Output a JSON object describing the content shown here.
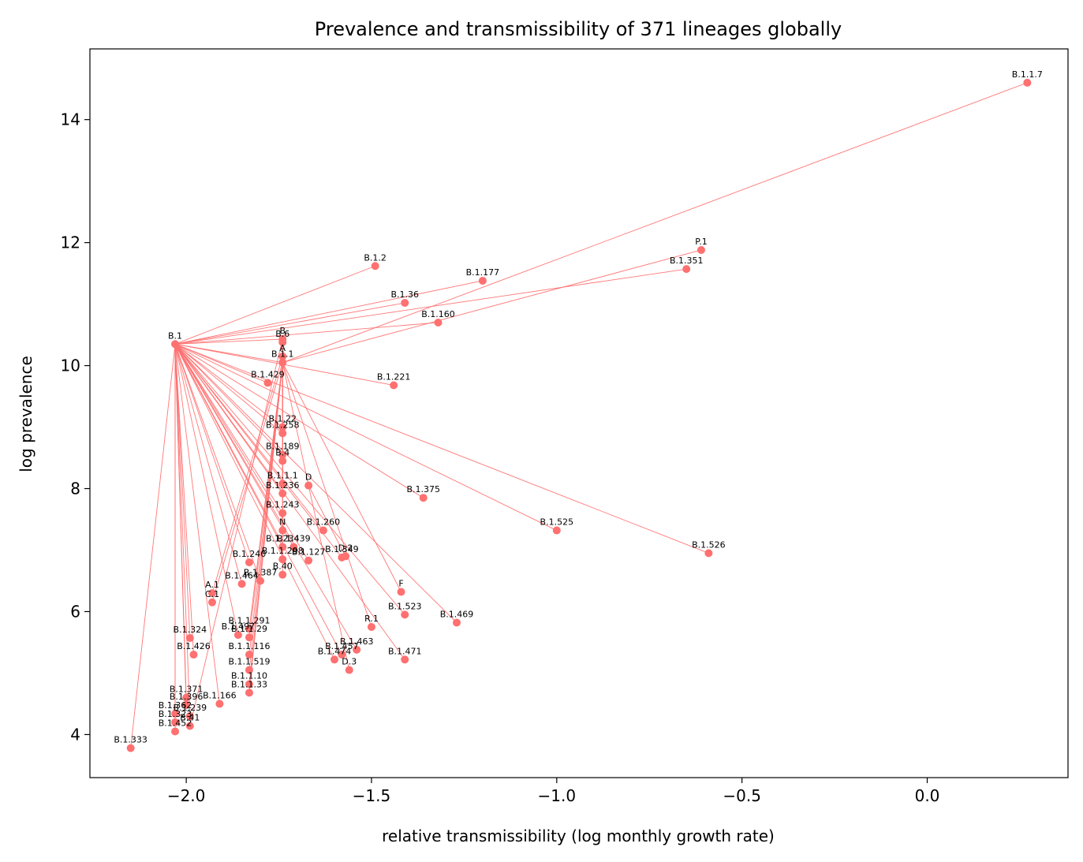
{
  "chart_data": {
    "type": "scatter",
    "title": "Prevalence and transmissibility of 371 lineages globally",
    "xlabel": "relative transmissibility (log monthly growth rate)",
    "ylabel": "log prevalence",
    "xlim": [
      -2.26,
      0.38
    ],
    "ylim": [
      3.3,
      15.15
    ],
    "xticks": [
      -2.0,
      -1.5,
      -1.0,
      -0.5,
      0.0
    ],
    "xtick_labels": [
      "−2.0",
      "−1.5",
      "−1.0",
      "−0.5",
      "0.0"
    ],
    "yticks": [
      4,
      6,
      8,
      10,
      12,
      14
    ],
    "ytick_labels": [
      "4",
      "6",
      "8",
      "10",
      "12",
      "14"
    ],
    "grid": false,
    "legend": "none",
    "colors": {
      "series": "#ff7070"
    },
    "points": [
      {
        "id": "B.1.1.7",
        "label": "B.1.1.7",
        "x": 0.27,
        "y": 14.6,
        "parent": "B.1.1"
      },
      {
        "id": "P.1",
        "label": "P.1",
        "x": -0.61,
        "y": 11.88,
        "parent": "B.1.1"
      },
      {
        "id": "B.1.351",
        "label": "B.1.351",
        "x": -0.65,
        "y": 11.57,
        "parent": "B.1"
      },
      {
        "id": "B.1.2",
        "label": "B.1.2",
        "x": -1.49,
        "y": 11.62,
        "parent": "B.1"
      },
      {
        "id": "B.1.177",
        "label": "B.1.177",
        "x": -1.2,
        "y": 11.38,
        "parent": "B.1"
      },
      {
        "id": "B.1.36",
        "label": "B.1.36",
        "x": -1.41,
        "y": 11.02,
        "parent": "B.1"
      },
      {
        "id": "B.1.160",
        "label": "B.1.160",
        "x": -1.32,
        "y": 10.7,
        "parent": "B.1"
      },
      {
        "id": "B.1",
        "label": "B.1",
        "x": -2.03,
        "y": 10.35,
        "parent": "B"
      },
      {
        "id": "B",
        "label": "B",
        "x": -1.74,
        "y": 10.43,
        "parent": null
      },
      {
        "id": "B.6",
        "label": "B.6",
        "x": -1.74,
        "y": 10.38,
        "parent": "B"
      },
      {
        "id": "B.1.1",
        "label": "B.1.1",
        "x": -1.74,
        "y": 10.05,
        "parent": "B.1"
      },
      {
        "id": "A",
        "label": "A",
        "x": -1.74,
        "y": 10.15,
        "parent": null
      },
      {
        "id": "B.1.429",
        "label": "B.1.429",
        "x": -1.78,
        "y": 9.72,
        "parent": "B.1"
      },
      {
        "id": "B.1.221",
        "label": "B.1.221",
        "x": -1.44,
        "y": 9.68,
        "parent": "B.1"
      },
      {
        "id": "B.1.22",
        "label": "B.1.22",
        "x": -1.74,
        "y": 9.0,
        "parent": "B.1"
      },
      {
        "id": "B.1.258",
        "label": "B.1.258",
        "x": -1.74,
        "y": 8.9,
        "parent": "B.1"
      },
      {
        "id": "B.1.1.189",
        "label": "B.1.189",
        "x": -1.74,
        "y": 8.55,
        "parent": "B.1"
      },
      {
        "id": "B.4",
        "label": "B.4",
        "x": -1.74,
        "y": 8.45,
        "parent": "B"
      },
      {
        "id": "B.1.1.1",
        "label": "B.1.1.1",
        "x": -1.74,
        "y": 8.08,
        "parent": "B.1.1"
      },
      {
        "id": "B.1.236",
        "label": "B.1.236",
        "x": -1.74,
        "y": 7.92,
        "parent": "B.1"
      },
      {
        "id": "B.1.243",
        "label": "B.1.243",
        "x": -1.74,
        "y": 7.6,
        "parent": "B.1"
      },
      {
        "id": "D",
        "label": "D",
        "x": -1.67,
        "y": 8.05,
        "parent": "B.1.1"
      },
      {
        "id": "N",
        "label": "N",
        "x": -1.74,
        "y": 7.32,
        "parent": "B.1.1"
      },
      {
        "id": "B.1.375",
        "label": "B.1.375",
        "x": -1.36,
        "y": 7.85,
        "parent": "B.1"
      },
      {
        "id": "B.1.234",
        "label": "B.1.234",
        "x": -1.74,
        "y": 7.05,
        "parent": "B.1"
      },
      {
        "id": "B.1.298",
        "label": "B.1.1.298",
        "x": -1.74,
        "y": 6.85,
        "parent": "B.1.1"
      },
      {
        "id": "B.1.240",
        "label": "B.1.240",
        "x": -1.83,
        "y": 6.8,
        "parent": "B.1"
      },
      {
        "id": "B.40",
        "label": "B.40",
        "x": -1.74,
        "y": 6.6,
        "parent": "B"
      },
      {
        "id": "B.1.387",
        "label": "B.1.387",
        "x": -1.8,
        "y": 6.5,
        "parent": "B.1"
      },
      {
        "id": "B.1.464",
        "label": "B.1.464",
        "x": -1.85,
        "y": 6.45,
        "parent": "B.1"
      },
      {
        "id": "B.1.260",
        "label": "B.1.260",
        "x": -1.63,
        "y": 7.32,
        "parent": "B.1"
      },
      {
        "id": "B.1.525",
        "label": "B.1.525",
        "x": -1.0,
        "y": 7.32,
        "parent": "B.1"
      },
      {
        "id": "B.1.526",
        "label": "B.1.526",
        "x": -0.59,
        "y": 6.95,
        "parent": "B.1"
      },
      {
        "id": "B.1.439",
        "label": "B.1.439",
        "x": -1.71,
        "y": 7.05,
        "parent": "B.1"
      },
      {
        "id": "B.1.127",
        "label": "B.1.127",
        "x": -1.67,
        "y": 6.83,
        "parent": "B.1"
      },
      {
        "id": "B.1.349",
        "label": "B.1.349",
        "x": -1.58,
        "y": 6.88,
        "parent": "B.1"
      },
      {
        "id": "D.2",
        "label": "D.2",
        "x": -1.57,
        "y": 6.9,
        "parent": "D"
      },
      {
        "id": "A.1",
        "label": "A.1",
        "x": -1.93,
        "y": 6.3,
        "parent": "A"
      },
      {
        "id": "C.1",
        "label": "C.1",
        "x": -1.93,
        "y": 6.15,
        "parent": "B.1.1"
      },
      {
        "id": "B.1.497",
        "label": "B.1.497",
        "x": -1.86,
        "y": 5.62,
        "parent": "B.1"
      },
      {
        "id": "F",
        "label": "F",
        "x": -1.42,
        "y": 6.32,
        "parent": "B.1.1"
      },
      {
        "id": "B.1.523",
        "label": "B.1.523",
        "x": -1.41,
        "y": 5.95,
        "parent": "B.1"
      },
      {
        "id": "B.1.469",
        "label": "B.1.469",
        "x": -1.27,
        "y": 5.82,
        "parent": "B.1"
      },
      {
        "id": "R.1",
        "label": "R.1",
        "x": -1.5,
        "y": 5.75,
        "parent": "B.1.1"
      },
      {
        "id": "B.1.463",
        "label": "B.1.463",
        "x": -1.54,
        "y": 5.38,
        "parent": "B.1"
      },
      {
        "id": "B.1.457",
        "label": "B.1.457",
        "x": -1.58,
        "y": 5.3,
        "parent": "B.1"
      },
      {
        "id": "B.1.474",
        "label": "B.1.474",
        "x": -1.6,
        "y": 5.22,
        "parent": "B.1"
      },
      {
        "id": "B.1.471",
        "label": "B.1.471",
        "x": -1.41,
        "y": 5.22,
        "parent": "B.1"
      },
      {
        "id": "D.3",
        "label": "D.3",
        "x": -1.56,
        "y": 5.05,
        "parent": "D"
      },
      {
        "id": "B.1.324",
        "label": "B.1.324",
        "x": -1.99,
        "y": 5.57,
        "parent": "B.1"
      },
      {
        "id": "B.1.426",
        "label": "B.1.426",
        "x": -1.98,
        "y": 5.3,
        "parent": "B.1"
      },
      {
        "id": "B.1.371",
        "label": "B.1.371",
        "x": -2.0,
        "y": 4.6,
        "parent": "B.1"
      },
      {
        "id": "B.1.396",
        "label": "B.1.396",
        "x": -2.0,
        "y": 4.48,
        "parent": "B.1"
      },
      {
        "id": "B.1.362",
        "label": "B.1.362",
        "x": -2.03,
        "y": 4.34,
        "parent": "B.1"
      },
      {
        "id": "B.1.239",
        "label": "B.1.239",
        "x": -1.99,
        "y": 4.3,
        "parent": "B.1"
      },
      {
        "id": "B.1.323",
        "label": "B.1.323",
        "x": -2.03,
        "y": 4.2,
        "parent": "B.1"
      },
      {
        "id": "B.1.452",
        "label": "B.1.452",
        "x": -2.03,
        "y": 4.05,
        "parent": "B.1"
      },
      {
        "id": "B.41",
        "label": "B.41",
        "x": -1.99,
        "y": 4.14,
        "parent": "B"
      },
      {
        "id": "B.1.166",
        "label": "B.1.166",
        "x": -1.91,
        "y": 4.5,
        "parent": "B.1"
      },
      {
        "id": "B.1.333",
        "label": "B.1.333",
        "x": -2.15,
        "y": 3.78,
        "parent": "B.1"
      },
      {
        "id": "B.1.1.291",
        "label": "B.1.1.291",
        "x": -1.83,
        "y": 5.72,
        "parent": "B.1.1"
      },
      {
        "id": "B.1.1.29",
        "label": "B.1.1.29",
        "x": -1.83,
        "y": 5.58,
        "parent": "B.1.1"
      },
      {
        "id": "B.1.1.116",
        "label": "B.1.1.116",
        "x": -1.83,
        "y": 5.3,
        "parent": "B.1.1"
      },
      {
        "id": "B.1.1.519",
        "label": "B.1.1.519",
        "x": -1.83,
        "y": 5.05,
        "parent": "B.1.1"
      },
      {
        "id": "B.1.1.10",
        "label": "B.1.1.10",
        "x": -1.83,
        "y": 4.82,
        "parent": "B.1.1"
      },
      {
        "id": "B.1.1.33",
        "label": "B.1.1.33",
        "x": -1.83,
        "y": 4.68,
        "parent": "B.1.1"
      }
    ]
  }
}
